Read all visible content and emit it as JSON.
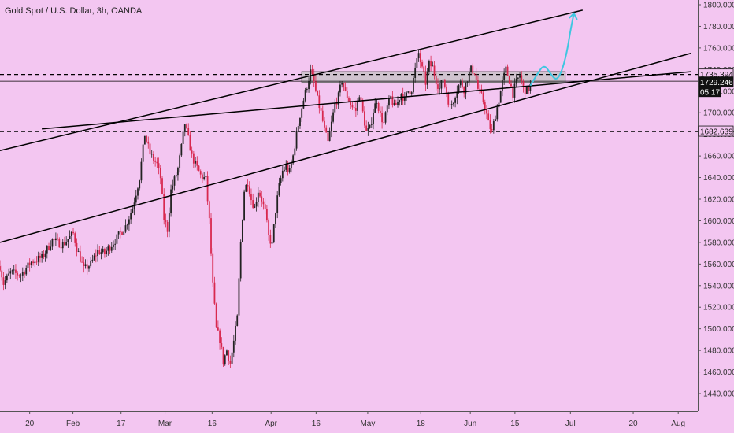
{
  "header": {
    "title": "Gold Spot / U.S. Dollar, 3h, OANDA"
  },
  "colors": {
    "background": "#f3c6f1",
    "candle_up": "#222222",
    "candle_down": "#d8284f",
    "channel_line": "#000000",
    "projection": "#3ec6e0",
    "zone_fill": "#c9c2c9",
    "axis_border": "#555555",
    "label_bg_dark": "#111111",
    "label_fg_light": "#ffffff"
  },
  "chart_data": {
    "type": "candlestick",
    "title": "Gold Spot / U.S. Dollar, 3h, OANDA",
    "xlabel": "",
    "ylabel": "",
    "ylim": [
      1430,
      1805
    ],
    "xlim": [
      0,
      200
    ],
    "grid": false,
    "y_ticks": [
      1440,
      1460,
      1480,
      1500,
      1520,
      1540,
      1560,
      1580,
      1600,
      1620,
      1640,
      1660,
      1680,
      1700,
      1720,
      1740,
      1760,
      1780,
      1800
    ],
    "y_tick_labels": [
      "1440.000",
      "1460.000",
      "1480.000",
      "1500.000",
      "1520.000",
      "1540.000",
      "1560.000",
      "1580.000",
      "1600.000",
      "1620.000",
      "1640.000",
      "1660.000",
      "1680.000",
      "1700.000",
      "1720.000",
      "1740.000",
      "1760.000",
      "1780.000",
      "1800.000"
    ],
    "x_ticks": [
      {
        "label": "20",
        "x": 8.5
      },
      {
        "label": "Feb",
        "x": 20.9
      },
      {
        "label": "17",
        "x": 34.7
      },
      {
        "label": "Mar",
        "x": 47.3
      },
      {
        "label": "16",
        "x": 60.8
      },
      {
        "label": "Apr",
        "x": 77.7
      },
      {
        "label": "16",
        "x": 90.6
      },
      {
        "label": "May",
        "x": 105.4
      },
      {
        "label": "18",
        "x": 120.6
      },
      {
        "label": "Jun",
        "x": 134.8
      },
      {
        "label": "15",
        "x": 147.6
      },
      {
        "label": "Jul",
        "x": 163.5
      },
      {
        "label": "20",
        "x": 181.5
      },
      {
        "label": "Aug",
        "x": 194.4
      }
    ],
    "price_keypoints": [
      [
        0,
        1558
      ],
      [
        1,
        1542
      ],
      [
        3,
        1552
      ],
      [
        6,
        1550
      ],
      [
        9,
        1562
      ],
      [
        12,
        1566
      ],
      [
        15,
        1582
      ],
      [
        18,
        1578
      ],
      [
        21,
        1588
      ],
      [
        22,
        1575
      ],
      [
        24,
        1555
      ],
      [
        26,
        1560
      ],
      [
        28,
        1572
      ],
      [
        30,
        1570
      ],
      [
        33,
        1582
      ],
      [
        36,
        1595
      ],
      [
        38,
        1612
      ],
      [
        40,
        1640
      ],
      [
        41.5,
        1680
      ],
      [
        43,
        1662
      ],
      [
        45,
        1652
      ],
      [
        46,
        1640
      ],
      [
        47,
        1602
      ],
      [
        48,
        1592
      ],
      [
        49,
        1628
      ],
      [
        51,
        1648
      ],
      [
        52,
        1668
      ],
      [
        53,
        1690
      ],
      [
        54,
        1676
      ],
      [
        55,
        1660
      ],
      [
        56,
        1652
      ],
      [
        57.5,
        1642
      ],
      [
        59,
        1638
      ],
      [
        60,
        1600
      ],
      [
        61,
        1540
      ],
      [
        62,
        1500
      ],
      [
        63,
        1490
      ],
      [
        64,
        1470
      ],
      [
        65,
        1480
      ],
      [
        66,
        1468
      ],
      [
        67,
        1488
      ],
      [
        68,
        1510
      ],
      [
        69,
        1580
      ],
      [
        70,
        1628
      ],
      [
        71,
        1636
      ],
      [
        72,
        1620
      ],
      [
        73,
        1612
      ],
      [
        74,
        1628
      ],
      [
        75,
        1620
      ],
      [
        76,
        1608
      ],
      [
        77,
        1585
      ],
      [
        78,
        1578
      ],
      [
        79,
        1610
      ],
      [
        80,
        1632
      ],
      [
        81,
        1646
      ],
      [
        82,
        1650
      ],
      [
        83,
        1645
      ],
      [
        84,
        1660
      ],
      [
        85,
        1680
      ],
      [
        86,
        1698
      ],
      [
        87,
        1712
      ],
      [
        88,
        1725
      ],
      [
        89,
        1738
      ],
      [
        90,
        1728
      ],
      [
        91,
        1712
      ],
      [
        92,
        1700
      ],
      [
        93,
        1684
      ],
      [
        94,
        1672
      ],
      [
        95,
        1690
      ],
      [
        96,
        1708
      ],
      [
        97,
        1715
      ],
      [
        98,
        1730
      ],
      [
        99,
        1718
      ],
      [
        100,
        1712
      ],
      [
        101,
        1705
      ],
      [
        102,
        1702
      ],
      [
        103,
        1718
      ],
      [
        104,
        1700
      ],
      [
        105,
        1682
      ],
      [
        106,
        1685
      ],
      [
        107,
        1702
      ],
      [
        108,
        1712
      ],
      [
        109,
        1698
      ],
      [
        110,
        1690
      ],
      [
        111,
        1705
      ],
      [
        112,
        1714
      ],
      [
        113,
        1705
      ],
      [
        114,
        1710
      ],
      [
        115,
        1718
      ],
      [
        116,
        1712
      ],
      [
        117,
        1720
      ],
      [
        118,
        1722
      ],
      [
        119,
        1740
      ],
      [
        120,
        1755
      ],
      [
        121,
        1740
      ],
      [
        122,
        1728
      ],
      [
        123,
        1745
      ],
      [
        124,
        1742
      ],
      [
        125,
        1730
      ],
      [
        126,
        1722
      ],
      [
        127,
        1732
      ],
      [
        128,
        1718
      ],
      [
        129,
        1705
      ],
      [
        130,
        1712
      ],
      [
        131,
        1722
      ],
      [
        132,
        1728
      ],
      [
        133,
        1722
      ],
      [
        134,
        1732
      ],
      [
        135,
        1740
      ],
      [
        136,
        1738
      ],
      [
        137,
        1722
      ],
      [
        138,
        1715
      ],
      [
        139,
        1706
      ],
      [
        140,
        1690
      ],
      [
        141,
        1682
      ],
      [
        142,
        1698
      ],
      [
        143,
        1712
      ],
      [
        144,
        1728
      ],
      [
        145,
        1740
      ],
      [
        146,
        1730
      ],
      [
        147,
        1718
      ],
      [
        148,
        1728
      ],
      [
        149,
        1735
      ],
      [
        150,
        1722
      ],
      [
        151,
        1720
      ],
      [
        152,
        1725
      ]
    ],
    "channel_lines": [
      {
        "name": "upper",
        "from": [
          0,
          1665
        ],
        "to": [
          167,
          1795
        ]
      },
      {
        "name": "lower",
        "from": [
          0,
          1580
        ],
        "to": [
          198,
          1755
        ]
      },
      {
        "name": "mid",
        "from": [
          12,
          1685
        ],
        "to": [
          198,
          1738
        ]
      }
    ],
    "horizontal_levels": [
      {
        "name": "dashed_upper",
        "value": 1735.394,
        "style": "dashed"
      },
      {
        "name": "solid_middle",
        "value": 1729.246,
        "style": "solid"
      },
      {
        "name": "dashed_lower",
        "value": 1682.639,
        "style": "dashed"
      }
    ],
    "zone": {
      "x_from": 86.5,
      "x_to": 162,
      "y_from": 1728,
      "y_to": 1738
    },
    "projection": [
      [
        152,
        1725
      ],
      [
        154,
        1736
      ],
      [
        156,
        1745
      ],
      [
        158,
        1735
      ],
      [
        159.5,
        1730
      ],
      [
        161,
        1738
      ],
      [
        162.5,
        1756
      ],
      [
        163.5,
        1776
      ],
      [
        164.5,
        1792
      ]
    ],
    "price_tags": [
      {
        "text": "1735.394",
        "value": 1735.394,
        "style": "light"
      },
      {
        "text": "1729.246",
        "value": 1729.246,
        "style": "dark"
      },
      {
        "text": "05:17",
        "value": 1720,
        "style": "dark"
      },
      {
        "text": "1682.639",
        "value": 1682.639,
        "style": "light"
      }
    ],
    "partial_tick_label": "17"
  }
}
